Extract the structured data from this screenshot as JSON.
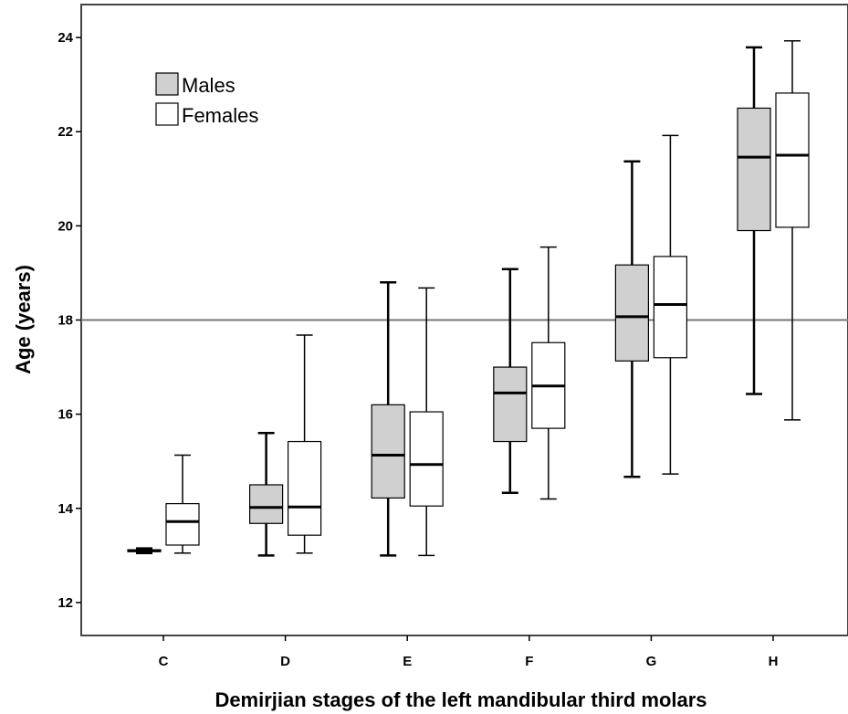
{
  "chart_data": {
    "type": "boxplot",
    "xlabel": "Demirjian stages of the left mandibular third molars",
    "ylabel": "Age (years)",
    "ylim": [
      11.3,
      24.7
    ],
    "yticks": [
      12,
      14,
      16,
      18,
      20,
      22,
      24
    ],
    "categories": [
      "C",
      "D",
      "E",
      "F",
      "G",
      "H"
    ],
    "reference_line": {
      "y": 18
    },
    "legend": {
      "position": "top-left"
    },
    "series": [
      {
        "name": "Males",
        "color": "#d0d0d0",
        "boxes": [
          {
            "category": "C",
            "min": 13.05,
            "q1": 13.08,
            "median": 13.1,
            "q3": 13.12,
            "max": 13.15
          },
          {
            "category": "D",
            "min": 13.0,
            "q1": 13.68,
            "median": 14.02,
            "q3": 14.5,
            "max": 15.6
          },
          {
            "category": "E",
            "min": 13.0,
            "q1": 14.22,
            "median": 15.13,
            "q3": 16.2,
            "max": 18.8
          },
          {
            "category": "F",
            "min": 14.33,
            "q1": 15.42,
            "median": 16.45,
            "q3": 17.0,
            "max": 19.08
          },
          {
            "category": "G",
            "min": 14.67,
            "q1": 17.13,
            "median": 18.07,
            "q3": 19.17,
            "max": 21.37
          },
          {
            "category": "H",
            "min": 16.43,
            "q1": 19.9,
            "median": 21.46,
            "q3": 22.5,
            "max": 23.79
          }
        ]
      },
      {
        "name": "Females",
        "color": "#ffffff",
        "boxes": [
          {
            "category": "C",
            "min": 13.05,
            "q1": 13.22,
            "median": 13.72,
            "q3": 14.1,
            "max": 15.13
          },
          {
            "category": "D",
            "min": 13.05,
            "q1": 13.43,
            "median": 14.03,
            "q3": 15.42,
            "max": 17.68
          },
          {
            "category": "E",
            "min": 13.0,
            "q1": 14.05,
            "median": 14.93,
            "q3": 16.05,
            "max": 18.68
          },
          {
            "category": "F",
            "min": 14.2,
            "q1": 15.7,
            "median": 16.6,
            "q3": 17.52,
            "max": 19.55
          },
          {
            "category": "G",
            "min": 14.73,
            "q1": 17.2,
            "median": 18.33,
            "q3": 19.35,
            "max": 21.92
          },
          {
            "category": "H",
            "min": 15.88,
            "q1": 19.97,
            "median": 21.5,
            "q3": 22.82,
            "max": 23.93
          }
        ]
      }
    ]
  }
}
